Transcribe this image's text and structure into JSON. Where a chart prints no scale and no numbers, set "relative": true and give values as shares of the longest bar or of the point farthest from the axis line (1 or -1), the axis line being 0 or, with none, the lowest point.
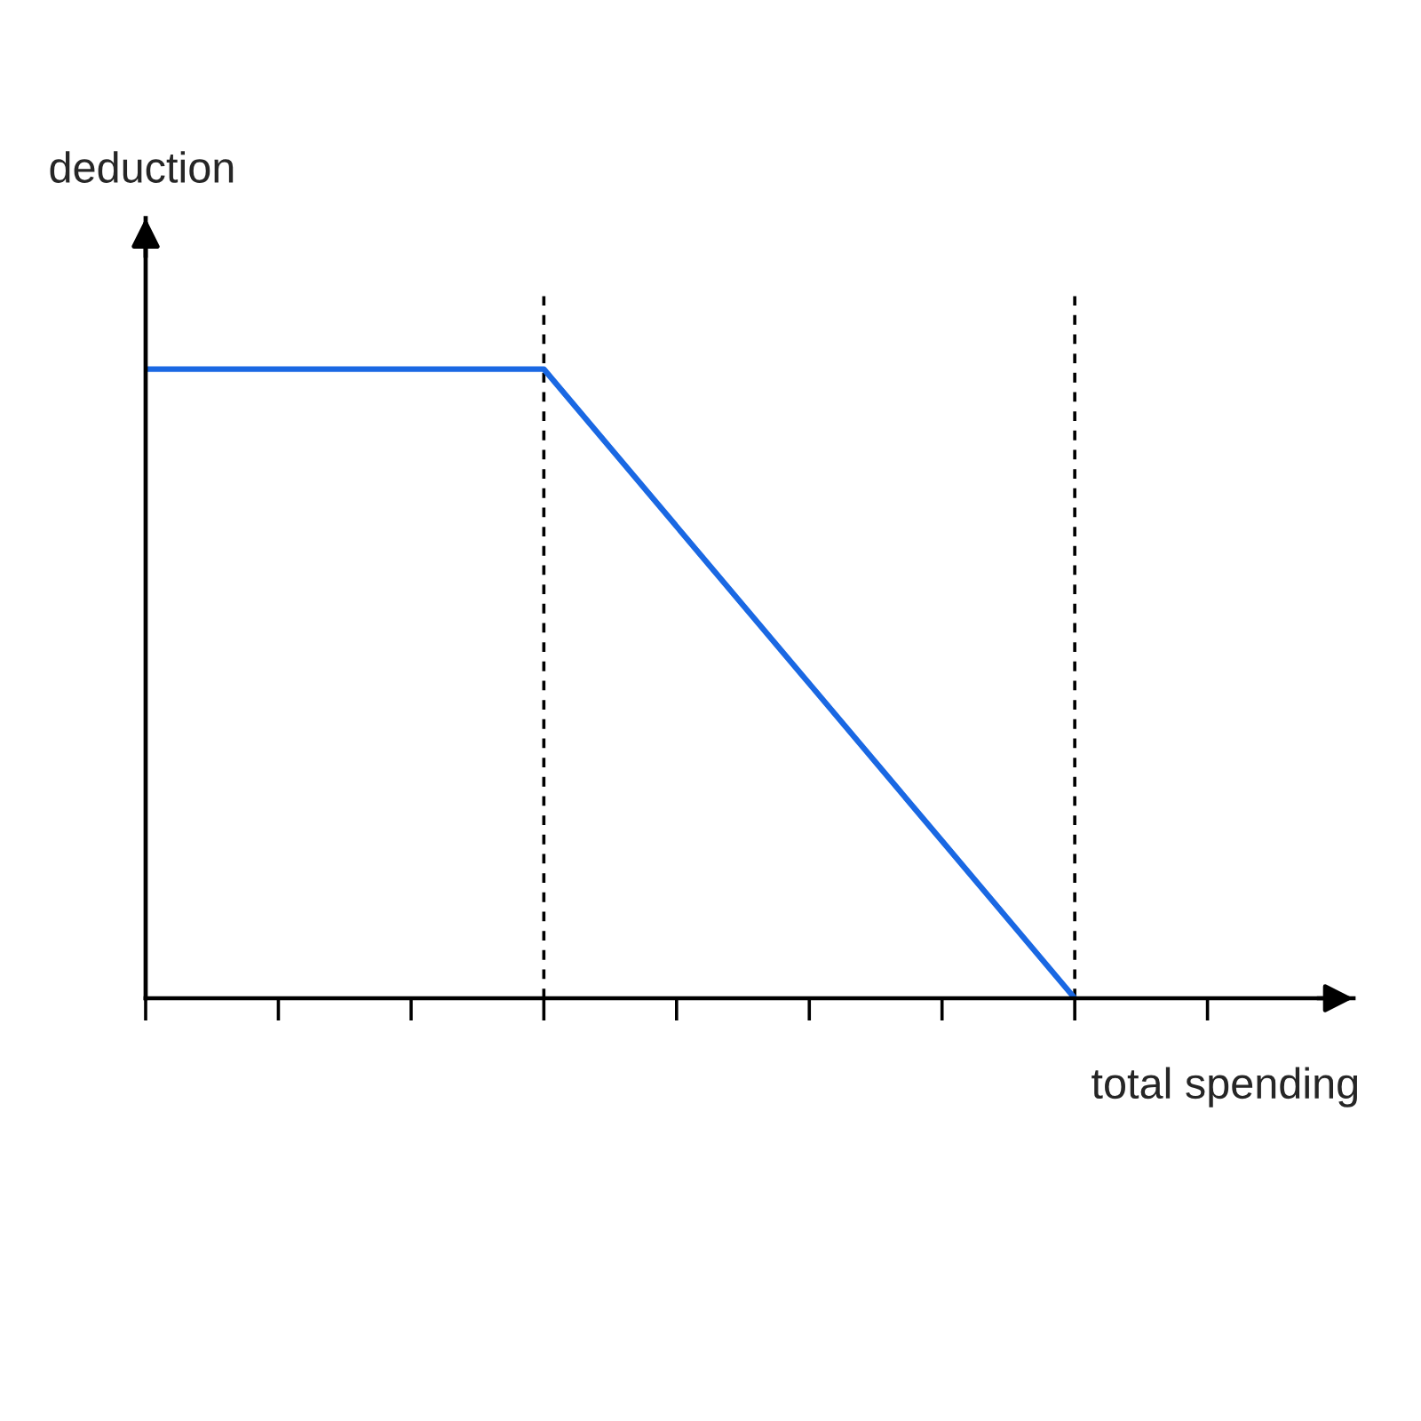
{
  "chart_data": {
    "type": "line",
    "relative": true,
    "xlabel": "total spending",
    "ylabel": "deduction",
    "categories": [
      null,
      null,
      null,
      null,
      null,
      null,
      null,
      null,
      null
    ],
    "series": [
      {
        "color": "#1a68e3",
        "values": [
          1,
          1,
          1,
          1,
          0.75,
          0.5,
          0.25,
          0,
          null
        ]
      }
    ]
  }
}
